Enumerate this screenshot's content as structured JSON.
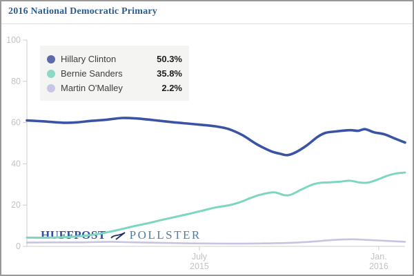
{
  "window": {
    "title": "2016 National Democratic Primary",
    "title_color": "#2b5c90",
    "border_color": "#979797",
    "divider_color": "#dddddd",
    "background": "#ffffff"
  },
  "logo": {
    "part1": "HUFFPOST",
    "part2": "POLLSTER",
    "part1_color": "#2f4f9e",
    "part2_color": "#4e7ba3",
    "mark": "pollster-bird"
  },
  "legend": {
    "background": "#f4f4f2"
  },
  "axes": {
    "line_color": "#cccccc",
    "label_color": "#c2c2c2"
  },
  "chart_data": {
    "type": "line",
    "title": "2016 National Democratic Primary",
    "xlabel": "",
    "ylabel": "",
    "x_unit": "months since Jan 1 2015",
    "xlim": [
      0.23,
      12.88
    ],
    "ylim": [
      0,
      100
    ],
    "grid": false,
    "legend_position": "top-left",
    "y_ticks": [
      0,
      20,
      40,
      60,
      80,
      100
    ],
    "x_ticks": [
      {
        "pos": 6,
        "lines": [
          "July",
          "2015"
        ]
      },
      {
        "pos": 12,
        "lines": [
          "Jan.",
          "2016"
        ]
      }
    ],
    "series": [
      {
        "name": "Hillary Clinton",
        "final_label": "50.3%",
        "color": "#3a53a4",
        "dot_color": "#5d6ba9",
        "width": 3.6,
        "points": [
          [
            0.23,
            61
          ],
          [
            0.76,
            60.6
          ],
          [
            1.45,
            59.9
          ],
          [
            1.91,
            60.1
          ],
          [
            2.37,
            60.8
          ],
          [
            2.84,
            61.3
          ],
          [
            3.41,
            62.2
          ],
          [
            3.88,
            62
          ],
          [
            4.45,
            61.2
          ],
          [
            5.15,
            60.1
          ],
          [
            5.84,
            59.2
          ],
          [
            6.53,
            58.2
          ],
          [
            6.99,
            56.8
          ],
          [
            7.45,
            53.8
          ],
          [
            7.92,
            49.5
          ],
          [
            8.38,
            46.2
          ],
          [
            8.72,
            44.8
          ],
          [
            8.95,
            44.2
          ],
          [
            9.25,
            45.8
          ],
          [
            9.6,
            49
          ],
          [
            9.95,
            53
          ],
          [
            10.22,
            55
          ],
          [
            10.57,
            55.7
          ],
          [
            11.03,
            56.3
          ],
          [
            11.31,
            56
          ],
          [
            11.54,
            56.8
          ],
          [
            11.84,
            55.3
          ],
          [
            12.19,
            54.3
          ],
          [
            12.53,
            52.3
          ],
          [
            12.88,
            50.3
          ]
        ]
      },
      {
        "name": "Bernie Sanders",
        "final_label": "35.8%",
        "color": "#7dd6c0",
        "dot_color": "#8ed9c6",
        "width": 3,
        "points": [
          [
            0.23,
            4.2
          ],
          [
            1.0,
            4.2
          ],
          [
            1.5,
            4.4
          ],
          [
            1.91,
            4.8
          ],
          [
            2.37,
            5.5
          ],
          [
            2.84,
            6.6
          ],
          [
            3.3,
            8
          ],
          [
            3.76,
            9.6
          ],
          [
            4.22,
            11
          ],
          [
            4.68,
            12.6
          ],
          [
            5.15,
            14.1
          ],
          [
            5.61,
            15.6
          ],
          [
            6.07,
            17.2
          ],
          [
            6.53,
            18.8
          ],
          [
            6.99,
            19.9
          ],
          [
            7.34,
            21.3
          ],
          [
            7.69,
            23.3
          ],
          [
            8.03,
            25
          ],
          [
            8.49,
            26.2
          ],
          [
            8.84,
            24.8
          ],
          [
            9.07,
            25.1
          ],
          [
            9.41,
            27.5
          ],
          [
            9.76,
            29.8
          ],
          [
            10.0,
            30.7
          ],
          [
            10.34,
            31
          ],
          [
            10.69,
            31.3
          ],
          [
            11.03,
            31.8
          ],
          [
            11.38,
            30.9
          ],
          [
            11.65,
            30.9
          ],
          [
            11.95,
            32.3
          ],
          [
            12.25,
            34
          ],
          [
            12.53,
            35.2
          ],
          [
            12.88,
            35.8
          ]
        ]
      },
      {
        "name": "Martin O'Malley",
        "final_label": "2.2%",
        "color": "#c7c4e2",
        "dot_color": "#c9c6e4",
        "width": 2.6,
        "points": [
          [
            0.23,
            1.8
          ],
          [
            1,
            1.9
          ],
          [
            2,
            1.9
          ],
          [
            2.6,
            2.1
          ],
          [
            3.07,
            2.2
          ],
          [
            3.6,
            2
          ],
          [
            4.2,
            1.8
          ],
          [
            5,
            1.6
          ],
          [
            6,
            1.4
          ],
          [
            7,
            1.3
          ],
          [
            8,
            1.4
          ],
          [
            9,
            1.7
          ],
          [
            9.8,
            2.3
          ],
          [
            10.3,
            2.9
          ],
          [
            10.8,
            3.3
          ],
          [
            11.2,
            3.4
          ],
          [
            11.6,
            3.1
          ],
          [
            12.2,
            2.7
          ],
          [
            12.88,
            2.2
          ]
        ]
      }
    ]
  }
}
